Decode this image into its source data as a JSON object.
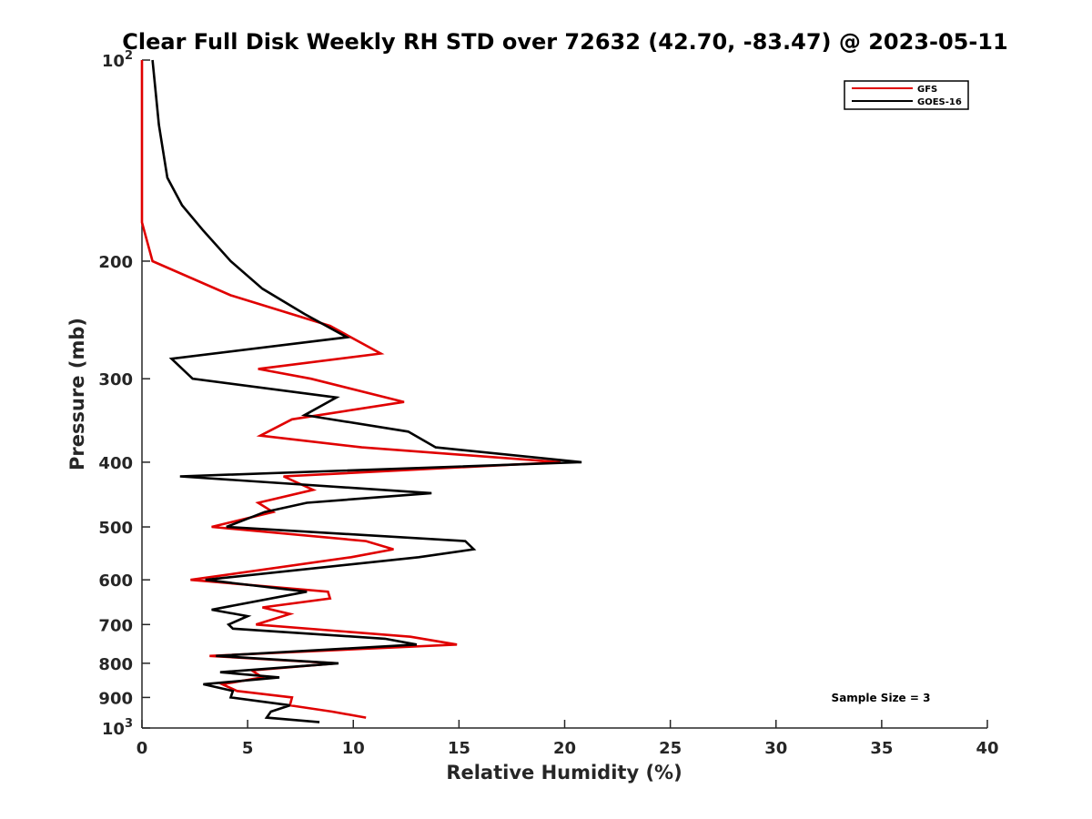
{
  "chart_data": {
    "type": "line",
    "title": "Clear Full Disk Weekly RH STD over 72632 (42.70, -83.47) @ 2023-05-11",
    "xlabel": "Relative Humidity (%)",
    "ylabel": "Pressure (mb)",
    "xlim": [
      0,
      40
    ],
    "ylim": [
      100,
      1000
    ],
    "yscale": "log",
    "y_reversed": true,
    "grid": false,
    "legend_position": "top-right",
    "x_ticks": [
      "0",
      "5",
      "10",
      "15",
      "20",
      "25",
      "30",
      "35",
      "40"
    ],
    "y_ticks": [
      {
        "value": 100,
        "base": "10",
        "exp": "2"
      },
      {
        "value": 200,
        "label": "200"
      },
      {
        "value": 300,
        "label": "300"
      },
      {
        "value": 400,
        "label": "400"
      },
      {
        "value": 500,
        "label": "500"
      },
      {
        "value": 600,
        "label": "600"
      },
      {
        "value": 700,
        "label": "700"
      },
      {
        "value": 800,
        "label": "800"
      },
      {
        "value": 900,
        "label": "900"
      },
      {
        "value": 1000,
        "base": "10",
        "exp": "3"
      }
    ],
    "annotation": "Sample Size = 3",
    "series": [
      {
        "name": "GFS",
        "color": "#e00000",
        "points": [
          [
            0.0,
            100
          ],
          [
            0.0,
            125
          ],
          [
            0.0,
            150
          ],
          [
            0.0,
            175
          ],
          [
            0.5,
            200
          ],
          [
            4.2,
            225
          ],
          [
            8.9,
            250
          ],
          [
            11.3,
            275
          ],
          [
            5.5,
            290
          ],
          [
            8.0,
            300
          ],
          [
            12.4,
            325
          ],
          [
            7.1,
            345
          ],
          [
            5.6,
            365
          ],
          [
            10.4,
            380
          ],
          [
            19.8,
            400
          ],
          [
            6.7,
            420
          ],
          [
            8.1,
            440
          ],
          [
            5.5,
            460
          ],
          [
            6.2,
            475
          ],
          [
            3.3,
            500
          ],
          [
            10.6,
            525
          ],
          [
            11.9,
            540
          ],
          [
            9.9,
            555
          ],
          [
            2.3,
            600
          ],
          [
            8.8,
            625
          ],
          [
            8.9,
            640
          ],
          [
            5.7,
            660
          ],
          [
            7.0,
            675
          ],
          [
            5.4,
            700
          ],
          [
            12.7,
            730
          ],
          [
            14.9,
            750
          ],
          [
            3.2,
            780
          ],
          [
            9.2,
            800
          ],
          [
            5.2,
            820
          ],
          [
            5.7,
            840
          ],
          [
            3.8,
            860
          ],
          [
            4.5,
            880
          ],
          [
            7.1,
            900
          ],
          [
            7.0,
            925
          ],
          [
            9.0,
            945
          ],
          [
            10.6,
            965
          ]
        ]
      },
      {
        "name": "GOES-16",
        "color": "#000000",
        "points": [
          [
            0.5,
            100
          ],
          [
            0.8,
            125
          ],
          [
            1.2,
            150
          ],
          [
            1.9,
            165
          ],
          [
            2.9,
            180
          ],
          [
            4.2,
            200
          ],
          [
            5.7,
            220
          ],
          [
            7.7,
            240
          ],
          [
            9.7,
            260
          ],
          [
            1.4,
            280
          ],
          [
            2.4,
            300
          ],
          [
            9.2,
            320
          ],
          [
            7.7,
            340
          ],
          [
            12.6,
            360
          ],
          [
            13.9,
            380
          ],
          [
            20.8,
            400
          ],
          [
            1.8,
            420
          ],
          [
            13.7,
            445
          ],
          [
            7.8,
            460
          ],
          [
            5.8,
            475
          ],
          [
            4.0,
            500
          ],
          [
            15.3,
            525
          ],
          [
            15.7,
            540
          ],
          [
            13.1,
            555
          ],
          [
            3.0,
            600
          ],
          [
            7.8,
            625
          ],
          [
            3.3,
            665
          ],
          [
            5.0,
            680
          ],
          [
            4.1,
            700
          ],
          [
            4.3,
            710
          ],
          [
            11.5,
            735
          ],
          [
            13.0,
            750
          ],
          [
            3.5,
            780
          ],
          [
            9.3,
            800
          ],
          [
            3.7,
            825
          ],
          [
            6.5,
            840
          ],
          [
            2.9,
            860
          ],
          [
            4.3,
            880
          ],
          [
            4.2,
            900
          ],
          [
            7.0,
            925
          ],
          [
            6.1,
            945
          ],
          [
            5.9,
            965
          ],
          [
            8.4,
            980
          ]
        ]
      }
    ]
  }
}
